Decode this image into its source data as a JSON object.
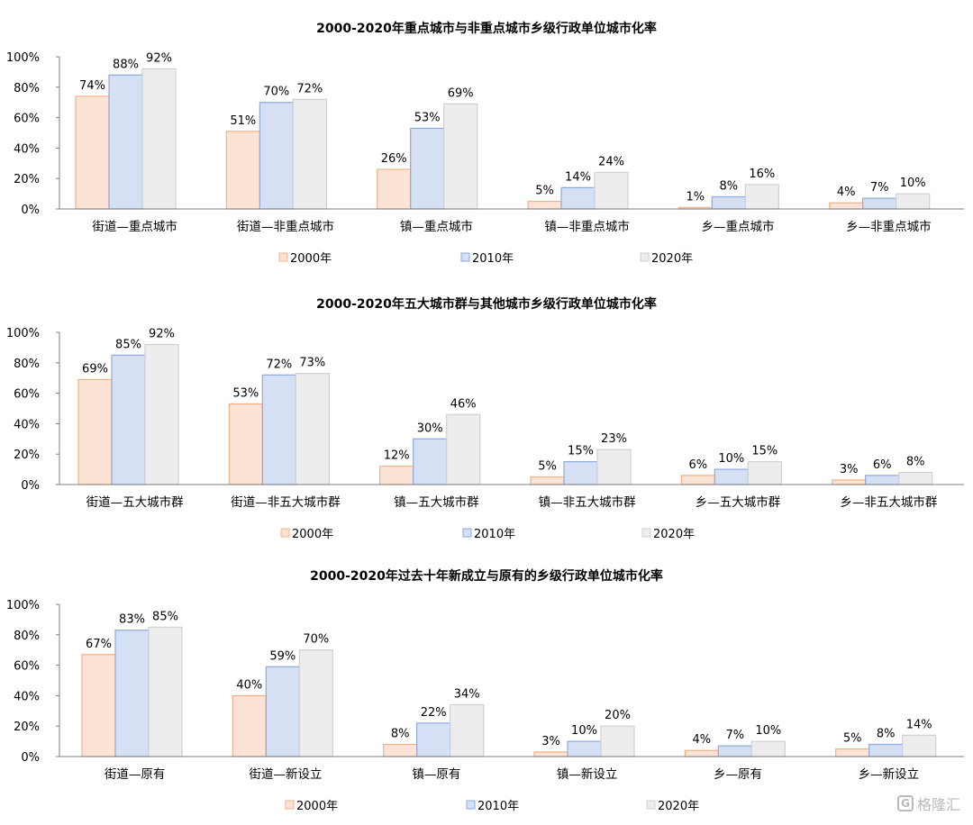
{
  "colors": {
    "s2000_fill": "#FBE3D6",
    "s2000_stroke": "#F4B183",
    "s2010_fill": "#D6E0F5",
    "s2010_stroke": "#8EA9DB",
    "s2020_fill": "#EDEDED",
    "s2020_stroke": "#D0D0D0",
    "axis": "#7f7f7f"
  },
  "watermark": {
    "text": "格隆汇",
    "icon": "G"
  },
  "chart_data": [
    {
      "type": "bar",
      "title": "2000-2020年重点城市与非重点城市乡级行政单位城市化率",
      "categories": [
        "街道—重点城市",
        "街道—非重点城市",
        "镇—重点城市",
        "镇—非重点城市",
        "乡—重点城市",
        "乡—非重点城市"
      ],
      "series": [
        {
          "name": "2000年",
          "values": [
            74,
            51,
            26,
            5,
            1,
            4
          ]
        },
        {
          "name": "2010年",
          "values": [
            88,
            70,
            53,
            14,
            8,
            7
          ]
        },
        {
          "name": "2020年",
          "values": [
            92,
            72,
            69,
            24,
            16,
            10
          ]
        }
      ],
      "yticks": [
        "0%",
        "20%",
        "40%",
        "60%",
        "80%",
        "100%"
      ],
      "ylim": [
        0,
        100
      ],
      "legend_position": "bottom"
    },
    {
      "type": "bar",
      "title": "2000-2020年五大城市群与其他城市乡级行政单位城市化率",
      "categories": [
        "街道—五大城市群",
        "街道—非五大城市群",
        "镇—五大城市群",
        "镇—非五大城市群",
        "乡—五大城市群",
        "乡—非五大城市群"
      ],
      "series": [
        {
          "name": "2000年",
          "values": [
            69,
            53,
            12,
            5,
            6,
            3
          ]
        },
        {
          "name": "2010年",
          "values": [
            85,
            72,
            30,
            15,
            10,
            6
          ]
        },
        {
          "name": "2020年",
          "values": [
            92,
            73,
            46,
            23,
            15,
            8
          ]
        }
      ],
      "yticks": [
        "0%",
        "20%",
        "40%",
        "60%",
        "80%",
        "100%"
      ],
      "ylim": [
        0,
        100
      ],
      "legend_position": "bottom"
    },
    {
      "type": "bar",
      "title": "2000-2020年过去十年新成立与原有的乡级行政单位城市化率",
      "categories": [
        "街道—原有",
        "街道—新设立",
        "镇—原有",
        "镇—新设立",
        "乡—原有",
        "乡—新设立"
      ],
      "series": [
        {
          "name": "2000年",
          "values": [
            67,
            40,
            8,
            3,
            4,
            5
          ]
        },
        {
          "name": "2010年",
          "values": [
            83,
            59,
            22,
            10,
            7,
            8
          ]
        },
        {
          "name": "2020年",
          "values": [
            85,
            70,
            34,
            20,
            10,
            14
          ]
        }
      ],
      "yticks": [
        "0%",
        "20%",
        "40%",
        "60%",
        "80%",
        "100%"
      ],
      "ylim": [
        0,
        100
      ],
      "legend_position": "bottom"
    }
  ]
}
